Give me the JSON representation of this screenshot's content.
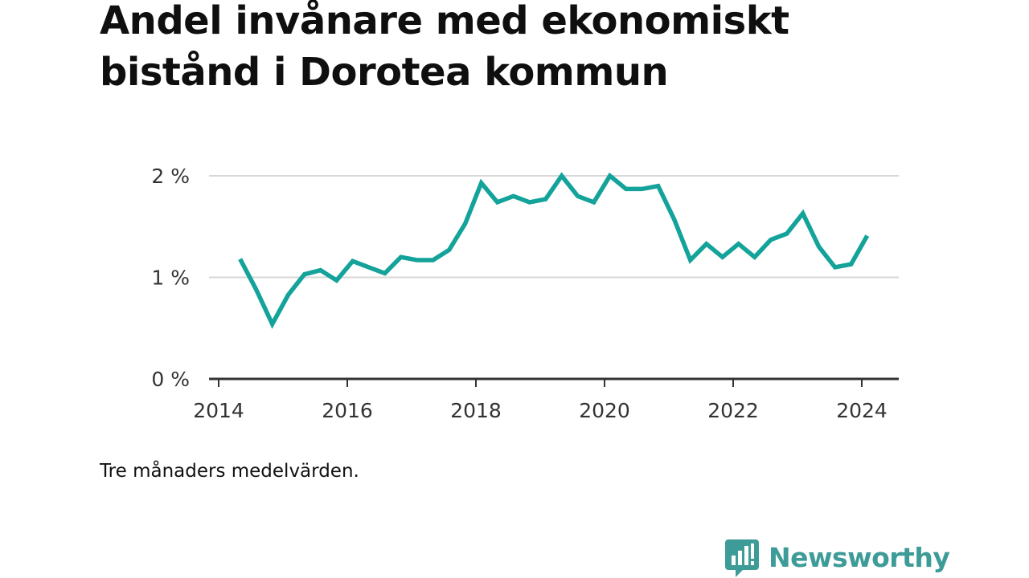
{
  "colors": {
    "line": "#13a39a",
    "brand": "#3d9c98",
    "text": "#111111",
    "grid": "#d7d7d7"
  },
  "chart_data": {
    "type": "line",
    "title": "Andel invånare med ekonomiskt bistånd i Dorotea kommun",
    "note": "Tre månaders medelvärden.",
    "xlabel": "",
    "ylabel": "",
    "x_ticks": [
      "2014",
      "2016",
      "2018",
      "2020",
      "2022",
      "2024"
    ],
    "y_ticks": [
      {
        "value": 0,
        "label": "0 %"
      },
      {
        "value": 1,
        "label": "1 %"
      },
      {
        "value": 2,
        "label": "2 %"
      }
    ],
    "ylim": [
      0,
      2.1
    ],
    "xlim": [
      "2014-01",
      "2024-12"
    ],
    "grid": true,
    "legend": "none",
    "series": [
      {
        "values": [
          {
            "x": "2014-05",
            "y": 1.18
          },
          {
            "x": "2014-08",
            "y": 0.88
          },
          {
            "x": "2014-11",
            "y": 0.54
          },
          {
            "x": "2015-02",
            "y": 0.83
          },
          {
            "x": "2015-05",
            "y": 1.03
          },
          {
            "x": "2015-08",
            "y": 1.07
          },
          {
            "x": "2015-11",
            "y": 0.97
          },
          {
            "x": "2016-02",
            "y": 1.16
          },
          {
            "x": "2016-05",
            "y": 1.1
          },
          {
            "x": "2016-08",
            "y": 1.04
          },
          {
            "x": "2016-11",
            "y": 1.2
          },
          {
            "x": "2017-02",
            "y": 1.17
          },
          {
            "x": "2017-05",
            "y": 1.17
          },
          {
            "x": "2017-08",
            "y": 1.27
          },
          {
            "x": "2017-11",
            "y": 1.53
          },
          {
            "x": "2018-02",
            "y": 1.93
          },
          {
            "x": "2018-05",
            "y": 1.74
          },
          {
            "x": "2018-08",
            "y": 1.8
          },
          {
            "x": "2018-11",
            "y": 1.74
          },
          {
            "x": "2019-02",
            "y": 1.77
          },
          {
            "x": "2019-05",
            "y": 2.0
          },
          {
            "x": "2019-08",
            "y": 1.8
          },
          {
            "x": "2019-11",
            "y": 1.74
          },
          {
            "x": "2020-02",
            "y": 2.0
          },
          {
            "x": "2020-05",
            "y": 1.87
          },
          {
            "x": "2020-08",
            "y": 1.87
          },
          {
            "x": "2020-11",
            "y": 1.9
          },
          {
            "x": "2021-02",
            "y": 1.57
          },
          {
            "x": "2021-05",
            "y": 1.17
          },
          {
            "x": "2021-08",
            "y": 1.33
          },
          {
            "x": "2021-11",
            "y": 1.2
          },
          {
            "x": "2022-02",
            "y": 1.33
          },
          {
            "x": "2022-05",
            "y": 1.2
          },
          {
            "x": "2022-08",
            "y": 1.37
          },
          {
            "x": "2022-11",
            "y": 1.43
          },
          {
            "x": "2023-02",
            "y": 1.63
          },
          {
            "x": "2023-05",
            "y": 1.3
          },
          {
            "x": "2023-08",
            "y": 1.1
          },
          {
            "x": "2023-11",
            "y": 1.13
          },
          {
            "x": "2024-02",
            "y": 1.41
          }
        ]
      }
    ]
  },
  "brand": {
    "name": "Newsworthy",
    "logo_icon": "bar-chart-speech-bubble-icon"
  }
}
